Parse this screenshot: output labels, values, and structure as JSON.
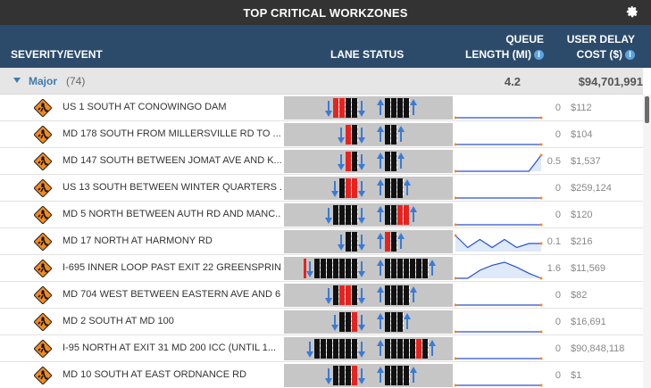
{
  "title": "TOP CRITICAL WORKZONES",
  "header": {
    "severity": "SEVERITY/EVENT",
    "lane": "LANE STATUS",
    "queue_line1": "QUEUE",
    "queue_line2": "LENGTH (MI)",
    "delay_line1": "USER DELAY",
    "delay_line2": "COST ($)"
  },
  "group": {
    "name": "Major",
    "count": "(74)",
    "queue": "4.2",
    "delay": "$94,701,991"
  },
  "rows": [
    {
      "event": "US 1 SOUTH AT CONOWINGO DAM",
      "queue": "0",
      "delay": "$112",
      "left": [
        "a",
        "r",
        "r",
        "b",
        "b",
        "a"
      ],
      "right": [
        "a",
        "b",
        "b",
        "b",
        "b",
        "a"
      ],
      "spark": [
        0,
        0,
        0,
        0,
        0,
        0,
        0,
        0
      ]
    },
    {
      "event": "MD 178 SOUTH FROM MILLERSVILLE RD TO ...",
      "queue": "0",
      "delay": "$104",
      "left": [
        "a",
        "r",
        "b",
        "a"
      ],
      "right": [
        "a",
        "b",
        "b",
        "a"
      ],
      "spark": [
        0,
        0,
        0,
        0,
        0,
        0,
        0,
        0
      ]
    },
    {
      "event": "MD 147 SOUTH BETWEEN JOMAT AVE AND K...",
      "queue": "0.5",
      "delay": "$1,537",
      "left": [
        "a",
        "r",
        "b",
        "a"
      ],
      "right": [
        "a",
        "b",
        "b",
        "a"
      ],
      "spark": [
        0,
        0,
        0,
        0,
        0,
        0,
        0,
        0.5
      ]
    },
    {
      "event": "US 13 SOUTH BETWEEN WINTER QUARTERS ...",
      "queue": "0",
      "delay": "$259,124",
      "left": [
        "a",
        "b",
        "r",
        "r",
        "a"
      ],
      "right": [
        "a",
        "b",
        "b",
        "b",
        "a"
      ],
      "spark": [
        0,
        0,
        0,
        0,
        0,
        0,
        0,
        0
      ]
    },
    {
      "event": "MD 5 NORTH BETWEEN AUTH RD AND MANC...",
      "queue": "0",
      "delay": "$120",
      "left": [
        "a",
        "b",
        "b",
        "b",
        "b",
        "a"
      ],
      "right": [
        "a",
        "b",
        "b",
        "r",
        "r",
        "a"
      ],
      "spark": [
        0,
        0,
        0,
        0,
        0,
        0,
        0,
        0
      ]
    },
    {
      "event": "MD 17 NORTH AT HARMONY RD",
      "queue": "0.1",
      "delay": "$216",
      "left": [
        "a",
        "b",
        "b",
        "a"
      ],
      "right": [
        "a",
        "r",
        "b",
        "a"
      ],
      "spark": [
        0.2,
        0.05,
        0.15,
        0.05,
        0.15,
        0.05,
        0.1,
        0.1
      ]
    },
    {
      "event": "I-695 INNER LOOP PAST EXIT 22 GREENSPRIN...",
      "queue": "1.6",
      "delay": "$11,569",
      "left": [
        "ar",
        "b",
        "b",
        "b",
        "b",
        "b",
        "b",
        "b",
        "a"
      ],
      "right": [
        "a",
        "b",
        "b",
        "b",
        "b",
        "b",
        "b",
        "b",
        "a"
      ],
      "spark": [
        0,
        0,
        0.8,
        1.3,
        1.6,
        1.1,
        0.5,
        0
      ]
    },
    {
      "event": "MD 704 WEST BETWEEN EASTERN AVE AND 6...",
      "queue": "0",
      "delay": "$82",
      "left": [
        "a",
        "b",
        "r",
        "r",
        "b",
        "a"
      ],
      "right": [
        "a",
        "b",
        "b",
        "b",
        "b",
        "a"
      ],
      "spark": [
        0,
        0,
        0,
        0,
        0,
        0,
        0,
        0
      ]
    },
    {
      "event": "MD 2 SOUTH AT MD 100",
      "queue": "0",
      "delay": "$16,691",
      "left": [
        "a",
        "b",
        "b",
        "r",
        "a"
      ],
      "right": [
        "a",
        "b",
        "b",
        "b",
        "a"
      ],
      "spark": [
        0,
        0,
        0,
        0,
        0,
        0,
        0,
        0
      ]
    },
    {
      "event": "I-95 NORTH AT EXIT 31 MD 200 ICC (UNTIL 1...",
      "queue": "0",
      "delay": "$90,848,118",
      "left": [
        "a",
        "b",
        "b",
        "b",
        "b",
        "b",
        "b",
        "b",
        "a"
      ],
      "right": [
        "a",
        "b",
        "b",
        "b",
        "b",
        "b",
        "r",
        "b",
        "a"
      ],
      "spark": [
        0,
        0,
        0,
        0,
        0,
        0,
        0,
        0
      ]
    },
    {
      "event": "MD 10 SOUTH AT EAST ORDNANCE RD",
      "queue": "0",
      "delay": "$1",
      "left": [
        "a",
        "b",
        "b",
        "b",
        "r",
        "a"
      ],
      "right": [
        "a",
        "b",
        "b",
        "b",
        "b",
        "a"
      ],
      "spark": [
        0,
        0,
        0,
        0,
        0,
        0,
        0,
        0
      ]
    }
  ],
  "colors": {
    "title_bg": "#333333",
    "header_bg": "#2c4b6b",
    "lane_open": "#111111",
    "lane_closed": "#e8231f",
    "arrow": "#3a7bd5",
    "icon_sign": "#f28a1e"
  }
}
